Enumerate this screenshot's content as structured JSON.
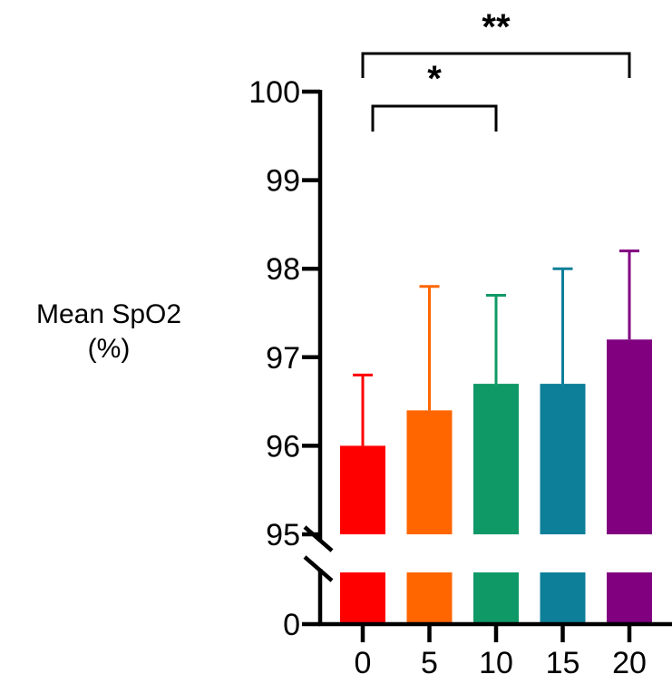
{
  "chart_data": {
    "type": "bar",
    "title": "",
    "xlabel": "",
    "ylabel": "Mean SpO2\n(%)",
    "ylabel_lines": [
      "Mean SpO2",
      "(%)"
    ],
    "categories": [
      "0",
      "5",
      "10",
      "15",
      "20"
    ],
    "values": [
      96.0,
      96.4,
      96.7,
      96.7,
      97.2
    ],
    "error_upper": [
      96.8,
      97.8,
      97.7,
      98.0,
      98.2
    ],
    "colors": [
      "#ff0000",
      "#ff6600",
      "#0f9966",
      "#0e7f99",
      "#800080"
    ],
    "ylim": [
      0,
      100
    ],
    "axis_break": [
      0,
      95
    ],
    "yticks_upper": [
      "95",
      "96",
      "97",
      "98",
      "99",
      "100"
    ],
    "yticks_lower": [
      "0"
    ],
    "significance": [
      {
        "from": "0",
        "to": "10",
        "label": "*"
      },
      {
        "from": "0",
        "to": "20",
        "label": "**"
      }
    ],
    "grid": false,
    "legend": "none"
  }
}
